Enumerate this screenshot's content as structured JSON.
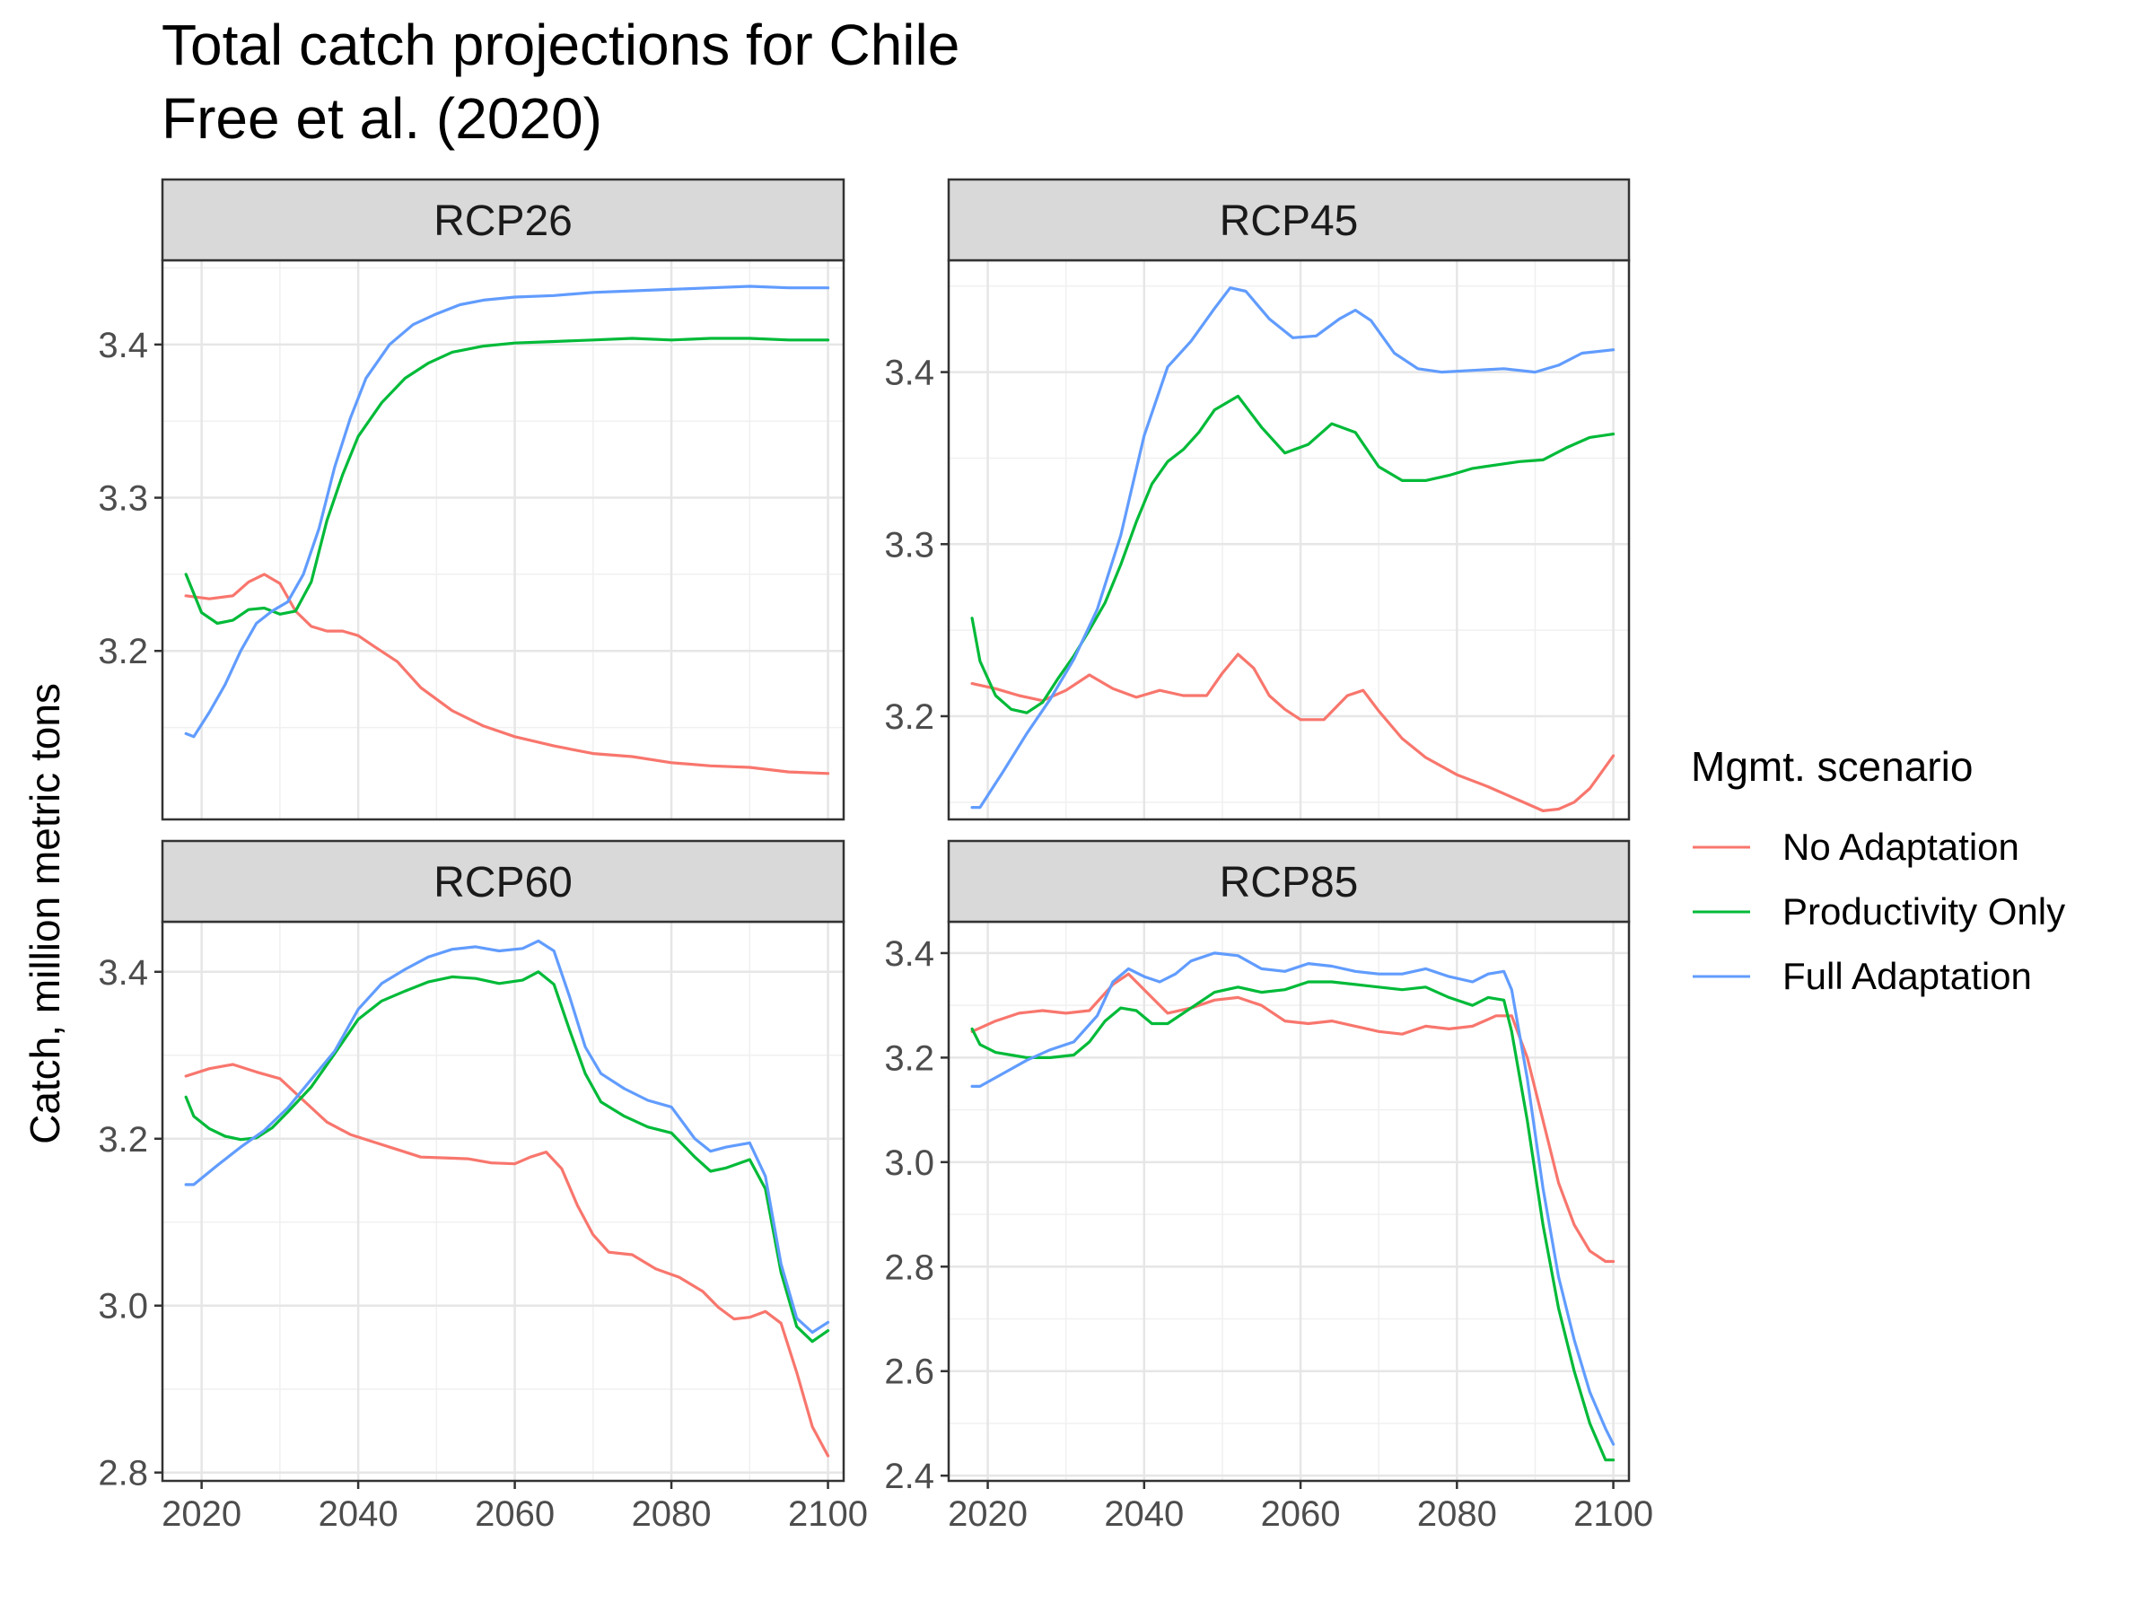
{
  "title_line1": "Total catch projections for Chile",
  "title_line2": "Free et al. (2020)",
  "ylabel": "Catch, million metric tons",
  "legend": {
    "title": "Mgmt. scenario",
    "items": [
      {
        "label": "No Adaptation",
        "color": "#F8766D"
      },
      {
        "label": "Productivity Only",
        "color": "#00BA38"
      },
      {
        "label": "Full Adaptation",
        "color": "#619CFF"
      }
    ]
  },
  "chart_data": [
    {
      "type": "line",
      "panel": "RCP26",
      "xlim": [
        2015,
        2102
      ],
      "ylim": [
        3.09,
        3.455
      ],
      "xticks": [
        2020,
        2040,
        2060,
        2080,
        2100
      ],
      "xtick_labels": [
        "2020",
        "2040",
        "2060",
        "2080",
        "2100"
      ],
      "yticks": [
        3.2,
        3.3,
        3.4
      ],
      "ytick_labels": [
        "3.2",
        "3.3",
        "3.4"
      ],
      "series": [
        {
          "name": "No Adaptation",
          "color": "#F8766D",
          "x": [
            2018,
            2021,
            2024,
            2026,
            2028,
            2030,
            2032,
            2034,
            2036,
            2038,
            2040,
            2042,
            2045,
            2048,
            2052,
            2056,
            2060,
            2065,
            2070,
            2075,
            2080,
            2085,
            2090,
            2095,
            2100
          ],
          "y": [
            3.236,
            3.234,
            3.236,
            3.245,
            3.25,
            3.244,
            3.226,
            3.216,
            3.213,
            3.213,
            3.21,
            3.203,
            3.193,
            3.176,
            3.161,
            3.151,
            3.144,
            3.138,
            3.133,
            3.131,
            3.127,
            3.125,
            3.124,
            3.121,
            3.12
          ]
        },
        {
          "name": "Productivity Only",
          "color": "#00BA38",
          "x": [
            2018,
            2020,
            2022,
            2024,
            2026,
            2028,
            2030,
            2032,
            2034,
            2036,
            2038,
            2040,
            2043,
            2046,
            2049,
            2052,
            2056,
            2060,
            2065,
            2070,
            2075,
            2080,
            2085,
            2090,
            2095,
            2100
          ],
          "y": [
            3.25,
            3.225,
            3.218,
            3.22,
            3.227,
            3.228,
            3.224,
            3.226,
            3.245,
            3.285,
            3.315,
            3.34,
            3.362,
            3.378,
            3.388,
            3.395,
            3.399,
            3.401,
            3.402,
            3.403,
            3.404,
            3.403,
            3.404,
            3.404,
            3.403,
            3.403
          ]
        },
        {
          "name": "Full Adaptation",
          "color": "#619CFF",
          "x": [
            2018,
            2019,
            2021,
            2023,
            2025,
            2027,
            2029,
            2031,
            2033,
            2035,
            2037,
            2039,
            2041,
            2044,
            2047,
            2050,
            2053,
            2056,
            2060,
            2065,
            2070,
            2075,
            2080,
            2085,
            2090,
            2095,
            2100
          ],
          "y": [
            3.146,
            3.144,
            3.16,
            3.178,
            3.2,
            3.218,
            3.226,
            3.232,
            3.25,
            3.28,
            3.32,
            3.352,
            3.378,
            3.4,
            3.413,
            3.42,
            3.426,
            3.429,
            3.431,
            3.432,
            3.434,
            3.435,
            3.436,
            3.437,
            3.438,
            3.437,
            3.437
          ]
        }
      ]
    },
    {
      "type": "line",
      "panel": "RCP45",
      "xlim": [
        2015,
        2102
      ],
      "ylim": [
        3.14,
        3.465
      ],
      "xticks": [
        2020,
        2040,
        2060,
        2080,
        2100
      ],
      "xtick_labels": [
        "2020",
        "2040",
        "2060",
        "2080",
        "2100"
      ],
      "yticks": [
        3.2,
        3.3,
        3.4
      ],
      "ytick_labels": [
        "3.2",
        "3.3",
        "3.4"
      ],
      "series": [
        {
          "name": "No Adaptation",
          "color": "#F8766D",
          "x": [
            2018,
            2021,
            2024,
            2027,
            2030,
            2033,
            2036,
            2039,
            2042,
            2045,
            2048,
            2050,
            2052,
            2054,
            2056,
            2058,
            2060,
            2063,
            2066,
            2068,
            2070,
            2073,
            2076,
            2080,
            2084,
            2088,
            2091,
            2093,
            2095,
            2097,
            2100
          ],
          "y": [
            3.219,
            3.216,
            3.212,
            3.209,
            3.215,
            3.224,
            3.216,
            3.211,
            3.215,
            3.212,
            3.212,
            3.225,
            3.236,
            3.228,
            3.212,
            3.204,
            3.198,
            3.198,
            3.212,
            3.215,
            3.203,
            3.187,
            3.176,
            3.166,
            3.159,
            3.151,
            3.145,
            3.146,
            3.15,
            3.158,
            3.177
          ]
        },
        {
          "name": "Productivity Only",
          "color": "#00BA38",
          "x": [
            2018,
            2019,
            2021,
            2023,
            2025,
            2027,
            2029,
            2031,
            2033,
            2035,
            2037,
            2039,
            2041,
            2043,
            2045,
            2047,
            2049,
            2052,
            2055,
            2058,
            2061,
            2064,
            2067,
            2070,
            2073,
            2076,
            2079,
            2082,
            2085,
            2088,
            2091,
            2094,
            2097,
            2100
          ],
          "y": [
            3.257,
            3.232,
            3.212,
            3.204,
            3.202,
            3.208,
            3.222,
            3.235,
            3.25,
            3.266,
            3.288,
            3.313,
            3.335,
            3.348,
            3.355,
            3.365,
            3.378,
            3.386,
            3.368,
            3.353,
            3.358,
            3.37,
            3.365,
            3.345,
            3.337,
            3.337,
            3.34,
            3.344,
            3.346,
            3.348,
            3.349,
            3.356,
            3.362,
            3.364
          ]
        },
        {
          "name": "Full Adaptation",
          "color": "#619CFF",
          "x": [
            2018,
            2019,
            2022,
            2025,
            2028,
            2031,
            2034,
            2037,
            2040,
            2043,
            2046,
            2049,
            2051,
            2053,
            2056,
            2059,
            2062,
            2065,
            2067,
            2069,
            2072,
            2075,
            2078,
            2082,
            2086,
            2090,
            2093,
            2096,
            2100
          ],
          "y": [
            3.147,
            3.147,
            3.168,
            3.19,
            3.21,
            3.233,
            3.262,
            3.305,
            3.363,
            3.403,
            3.418,
            3.437,
            3.449,
            3.447,
            3.431,
            3.42,
            3.421,
            3.431,
            3.436,
            3.43,
            3.411,
            3.402,
            3.4,
            3.401,
            3.402,
            3.4,
            3.404,
            3.411,
            3.413
          ]
        }
      ]
    },
    {
      "type": "line",
      "panel": "RCP60",
      "xlim": [
        2015,
        2102
      ],
      "ylim": [
        2.79,
        3.46
      ],
      "xticks": [
        2020,
        2040,
        2060,
        2080,
        2100
      ],
      "xtick_labels": [
        "2020",
        "2040",
        "2060",
        "2080",
        "2100"
      ],
      "yticks": [
        2.8,
        3.0,
        3.2,
        3.4
      ],
      "ytick_labels": [
        "2.8",
        "3.0",
        "3.2",
        "3.4"
      ],
      "series": [
        {
          "name": "No Adaptation",
          "color": "#F8766D",
          "x": [
            2018,
            2021,
            2024,
            2027,
            2030,
            2033,
            2036,
            2039,
            2042,
            2045,
            2048,
            2051,
            2054,
            2057,
            2060,
            2062,
            2064,
            2066,
            2068,
            2070,
            2072,
            2075,
            2078,
            2081,
            2084,
            2086,
            2088,
            2090,
            2092,
            2094,
            2096,
            2098,
            2100
          ],
          "y": [
            3.275,
            3.284,
            3.289,
            3.28,
            3.272,
            3.246,
            3.22,
            3.205,
            3.196,
            3.187,
            3.178,
            3.177,
            3.176,
            3.171,
            3.17,
            3.178,
            3.184,
            3.164,
            3.12,
            3.085,
            3.064,
            3.061,
            3.044,
            3.034,
            3.017,
            2.998,
            2.984,
            2.986,
            2.993,
            2.979,
            2.92,
            2.855,
            2.82
          ]
        },
        {
          "name": "Productivity Only",
          "color": "#00BA38",
          "x": [
            2018,
            2019,
            2021,
            2023,
            2025,
            2027,
            2029,
            2031,
            2034,
            2037,
            2040,
            2043,
            2046,
            2049,
            2052,
            2055,
            2058,
            2061,
            2063,
            2065,
            2067,
            2069,
            2071,
            2074,
            2077,
            2080,
            2083,
            2085,
            2087,
            2090,
            2092,
            2094,
            2096,
            2098,
            2100
          ],
          "y": [
            3.25,
            3.227,
            3.212,
            3.203,
            3.199,
            3.201,
            3.213,
            3.232,
            3.262,
            3.302,
            3.343,
            3.365,
            3.377,
            3.388,
            3.394,
            3.392,
            3.386,
            3.39,
            3.4,
            3.385,
            3.33,
            3.278,
            3.244,
            3.227,
            3.214,
            3.207,
            3.178,
            3.161,
            3.165,
            3.175,
            3.14,
            3.04,
            2.975,
            2.957,
            2.97
          ]
        },
        {
          "name": "Full Adaptation",
          "color": "#619CFF",
          "x": [
            2018,
            2019,
            2022,
            2025,
            2028,
            2031,
            2034,
            2037,
            2040,
            2043,
            2046,
            2049,
            2052,
            2055,
            2058,
            2061,
            2063,
            2065,
            2067,
            2069,
            2071,
            2074,
            2077,
            2080,
            2083,
            2085,
            2087,
            2090,
            2092,
            2094,
            2096,
            2098,
            2100
          ],
          "y": [
            3.145,
            3.145,
            3.168,
            3.19,
            3.21,
            3.237,
            3.271,
            3.305,
            3.355,
            3.386,
            3.403,
            3.418,
            3.427,
            3.43,
            3.425,
            3.428,
            3.437,
            3.425,
            3.37,
            3.31,
            3.278,
            3.26,
            3.246,
            3.238,
            3.2,
            3.185,
            3.19,
            3.195,
            3.155,
            3.05,
            2.985,
            2.968,
            2.98
          ]
        }
      ]
    },
    {
      "type": "line",
      "panel": "RCP85",
      "xlim": [
        2015,
        2102
      ],
      "ylim": [
        2.39,
        3.46
      ],
      "xticks": [
        2020,
        2040,
        2060,
        2080,
        2100
      ],
      "xtick_labels": [
        "2020",
        "2040",
        "2060",
        "2080",
        "2100"
      ],
      "yticks": [
        2.4,
        2.6,
        2.8,
        3.0,
        3.2,
        3.4
      ],
      "ytick_labels": [
        "2.4",
        "2.6",
        "2.8",
        "3.0",
        "3.2",
        "3.4"
      ],
      "series": [
        {
          "name": "No Adaptation",
          "color": "#F8766D",
          "x": [
            2018,
            2021,
            2024,
            2027,
            2030,
            2033,
            2036,
            2038,
            2040,
            2043,
            2046,
            2049,
            2052,
            2055,
            2058,
            2061,
            2064,
            2067,
            2070,
            2073,
            2076,
            2079,
            2082,
            2085,
            2087,
            2089,
            2091,
            2093,
            2095,
            2097,
            2099,
            2100
          ],
          "y": [
            3.25,
            3.27,
            3.285,
            3.29,
            3.285,
            3.29,
            3.34,
            3.36,
            3.33,
            3.285,
            3.295,
            3.31,
            3.315,
            3.3,
            3.27,
            3.265,
            3.27,
            3.26,
            3.25,
            3.245,
            3.26,
            3.255,
            3.26,
            3.28,
            3.28,
            3.2,
            3.08,
            2.96,
            2.88,
            2.83,
            2.81,
            2.81
          ]
        },
        {
          "name": "Productivity Only",
          "color": "#00BA38",
          "x": [
            2018,
            2019,
            2021,
            2023,
            2025,
            2028,
            2031,
            2033,
            2035,
            2037,
            2039,
            2041,
            2043,
            2046,
            2049,
            2052,
            2055,
            2058,
            2061,
            2064,
            2067,
            2070,
            2073,
            2076,
            2079,
            2082,
            2084,
            2086,
            2087,
            2089,
            2091,
            2093,
            2095,
            2097,
            2099,
            2100
          ],
          "y": [
            3.255,
            3.225,
            3.21,
            3.205,
            3.2,
            3.2,
            3.205,
            3.23,
            3.27,
            3.295,
            3.29,
            3.265,
            3.265,
            3.295,
            3.325,
            3.335,
            3.325,
            3.33,
            3.345,
            3.345,
            3.34,
            3.335,
            3.33,
            3.335,
            3.315,
            3.3,
            3.315,
            3.31,
            3.25,
            3.08,
            2.88,
            2.72,
            2.6,
            2.5,
            2.43,
            2.43
          ]
        },
        {
          "name": "Full Adaptation",
          "color": "#619CFF",
          "x": [
            2018,
            2019,
            2022,
            2025,
            2028,
            2031,
            2034,
            2036,
            2038,
            2040,
            2042,
            2044,
            2046,
            2049,
            2052,
            2055,
            2058,
            2061,
            2064,
            2067,
            2070,
            2073,
            2076,
            2079,
            2082,
            2084,
            2086,
            2087,
            2089,
            2091,
            2093,
            2095,
            2097,
            2099,
            2100
          ],
          "y": [
            3.145,
            3.145,
            3.17,
            3.195,
            3.215,
            3.23,
            3.28,
            3.345,
            3.37,
            3.355,
            3.345,
            3.36,
            3.385,
            3.4,
            3.395,
            3.37,
            3.365,
            3.38,
            3.375,
            3.365,
            3.36,
            3.36,
            3.37,
            3.355,
            3.345,
            3.36,
            3.365,
            3.33,
            3.16,
            2.95,
            2.78,
            2.66,
            2.56,
            2.49,
            2.46
          ]
        }
      ]
    }
  ]
}
